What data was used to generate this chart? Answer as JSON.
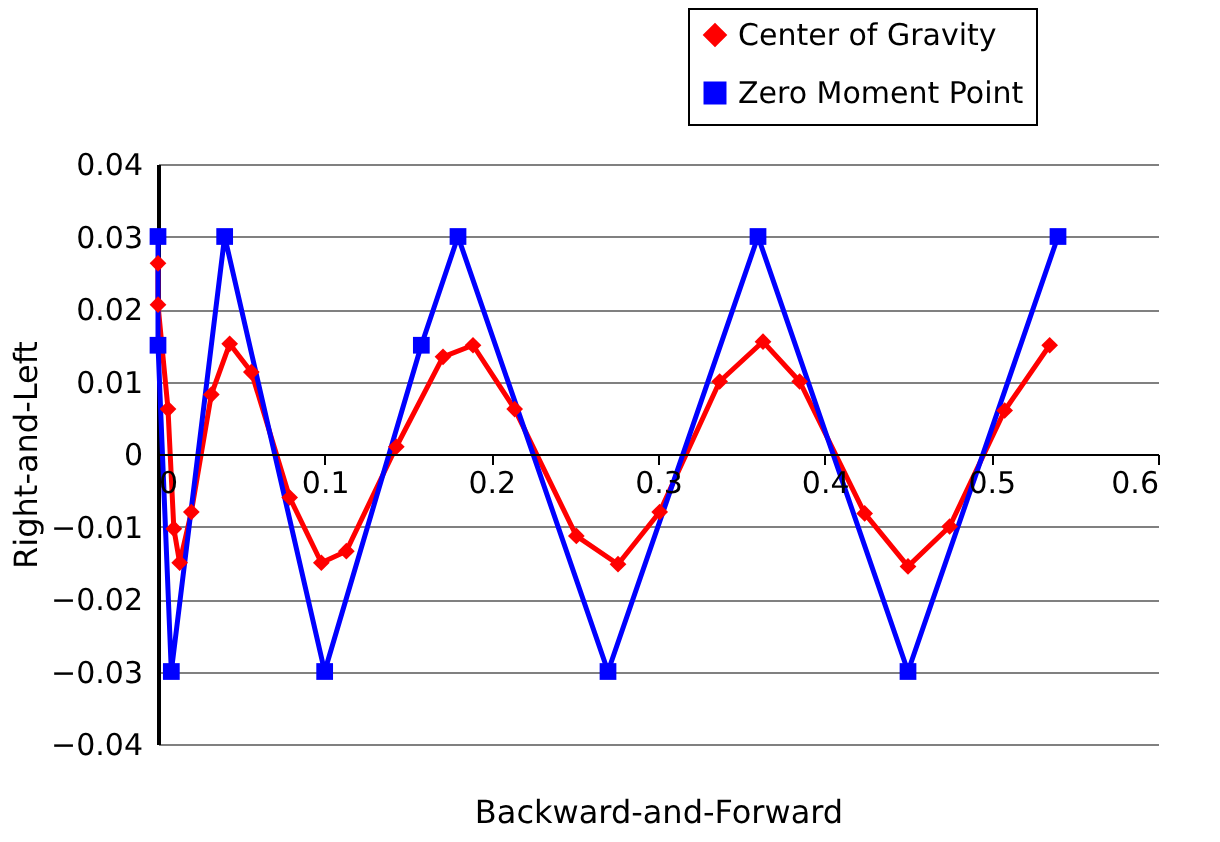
{
  "chart_data": {
    "type": "line",
    "xlabel": "Backward-and-Forward",
    "ylabel": "Right-and-Left",
    "xlim": [
      0,
      0.6
    ],
    "xticks": [
      0,
      0.1,
      0.2,
      0.3,
      0.4,
      0.5,
      0.6
    ],
    "ylim": [
      -0.04,
      0.04
    ],
    "yticks": [
      -0.04,
      -0.03,
      -0.02,
      -0.01,
      0,
      0.01,
      0.02,
      0.03,
      0.04
    ],
    "grid": "y",
    "legend": "top right",
    "series": [
      {
        "name": "Center of Gravity",
        "color": "#ff0000",
        "marker": "diamond",
        "x": [
          0,
          0,
          0.006,
          0.0095,
          0.013,
          0.02,
          0.032,
          0.043,
          0.056,
          0.079,
          0.098,
          0.113,
          0.143,
          0.171,
          0.189,
          0.214,
          0.251,
          0.276,
          0.301,
          0.337,
          0.363,
          0.385,
          0.424,
          0.45,
          0.475,
          0.508,
          0.535
        ],
        "values": [
          0.0263,
          0.0206,
          0.0062,
          -0.0103,
          -0.015,
          -0.008,
          0.0082,
          0.0152,
          0.0113,
          -0.006,
          -0.015,
          -0.0134,
          0.001,
          0.0134,
          0.015,
          0.0062,
          -0.0113,
          -0.0152,
          -0.008,
          0.01,
          0.0155,
          0.01,
          -0.0082,
          -0.0155,
          -0.01,
          0.006,
          0.015
        ]
      },
      {
        "name": "Zero Moment Point",
        "color": "#0000ff",
        "marker": "square",
        "x": [
          0,
          0,
          0.008,
          0.04,
          0.1,
          0.158,
          0.18,
          0.27,
          0.36,
          0.45,
          0.54
        ],
        "values": [
          0.03,
          0.015,
          -0.03,
          0.03,
          -0.03,
          0.015,
          0.03,
          -0.03,
          0.03,
          -0.03,
          0.03
        ]
      }
    ]
  }
}
